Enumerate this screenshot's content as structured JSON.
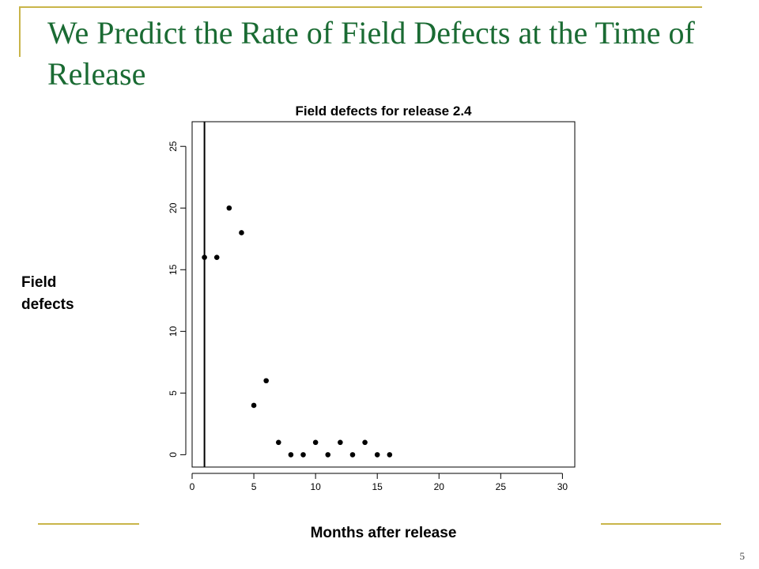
{
  "slide": {
    "title": "We Predict the Rate of Field Defects at the Time of Release",
    "page_number": "5",
    "accent_color": "#c9b54a",
    "title_color": "#1a6b33"
  },
  "chart_data": {
    "type": "scatter",
    "title": "Field defects for release 2.4",
    "xlabel": "Months after release",
    "ylabel": "Field defects",
    "xlim": [
      0,
      31
    ],
    "ylim": [
      -1,
      27
    ],
    "x_ticks": [
      0,
      5,
      10,
      15,
      20,
      25,
      30
    ],
    "y_ticks": [
      0,
      5,
      10,
      15,
      20,
      25
    ],
    "vertical_line_x": 1,
    "x": [
      1,
      2,
      3,
      4,
      5,
      6,
      7,
      8,
      9,
      10,
      11,
      12,
      13,
      14,
      15,
      16
    ],
    "y": [
      16,
      16,
      20,
      18,
      4,
      6,
      1,
      0,
      0,
      1,
      0,
      1,
      0,
      1,
      0,
      0
    ],
    "grid": false
  }
}
